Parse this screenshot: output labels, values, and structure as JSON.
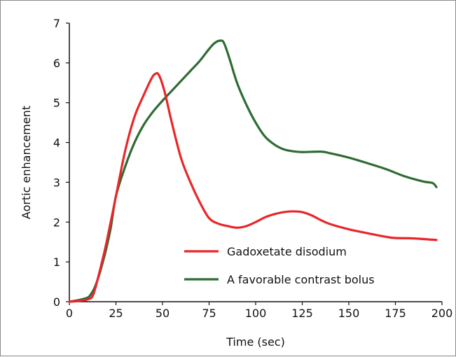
{
  "chart_data": {
    "type": "line",
    "xlabel": "Time (sec)",
    "ylabel": "Aortic enhancement",
    "xlim": [
      0,
      200
    ],
    "ylim": [
      0,
      7
    ],
    "x_ticks": [
      0,
      25,
      50,
      75,
      100,
      125,
      150,
      175,
      200
    ],
    "y_ticks": [
      0,
      1,
      2,
      3,
      4,
      5,
      6,
      7
    ],
    "grid": false,
    "legend_position": "lower-center",
    "series": [
      {
        "name": "Gadoxetate disodium",
        "color": "#e8262a",
        "points": [
          [
            0,
            0
          ],
          [
            5,
            0.02
          ],
          [
            10,
            0.06
          ],
          [
            13,
            0.2
          ],
          [
            17,
            0.9
          ],
          [
            20,
            1.5
          ],
          [
            25,
            2.65
          ],
          [
            30,
            3.8
          ],
          [
            35,
            4.65
          ],
          [
            40,
            5.2
          ],
          [
            44,
            5.6
          ],
          [
            46,
            5.72
          ],
          [
            48,
            5.7
          ],
          [
            51,
            5.3
          ],
          [
            55,
            4.5
          ],
          [
            60,
            3.6
          ],
          [
            65,
            3.0
          ],
          [
            70,
            2.5
          ],
          [
            75,
            2.1
          ],
          [
            80,
            1.96
          ],
          [
            85,
            1.9
          ],
          [
            90,
            1.86
          ],
          [
            95,
            1.9
          ],
          [
            100,
            2.0
          ],
          [
            105,
            2.12
          ],
          [
            110,
            2.2
          ],
          [
            115,
            2.25
          ],
          [
            120,
            2.27
          ],
          [
            125,
            2.25
          ],
          [
            130,
            2.17
          ],
          [
            135,
            2.05
          ],
          [
            140,
            1.95
          ],
          [
            150,
            1.82
          ],
          [
            160,
            1.72
          ],
          [
            170,
            1.63
          ],
          [
            175,
            1.6
          ],
          [
            185,
            1.59
          ],
          [
            197,
            1.55
          ]
        ]
      },
      {
        "name": "A favorable contrast bolus",
        "color": "#2e6b33",
        "points": [
          [
            0,
            0
          ],
          [
            5,
            0.04
          ],
          [
            9,
            0.09
          ],
          [
            11,
            0.15
          ],
          [
            14,
            0.4
          ],
          [
            18,
            1.0
          ],
          [
            22,
            1.8
          ],
          [
            25,
            2.65
          ],
          [
            30,
            3.4
          ],
          [
            35,
            4.0
          ],
          [
            40,
            4.45
          ],
          [
            45,
            4.78
          ],
          [
            50,
            5.05
          ],
          [
            55,
            5.3
          ],
          [
            60,
            5.55
          ],
          [
            65,
            5.8
          ],
          [
            70,
            6.05
          ],
          [
            75,
            6.35
          ],
          [
            78,
            6.5
          ],
          [
            81,
            6.56
          ],
          [
            83,
            6.5
          ],
          [
            86,
            6.1
          ],
          [
            90,
            5.5
          ],
          [
            95,
            4.95
          ],
          [
            100,
            4.5
          ],
          [
            105,
            4.15
          ],
          [
            110,
            3.95
          ],
          [
            115,
            3.83
          ],
          [
            120,
            3.78
          ],
          [
            125,
            3.76
          ],
          [
            135,
            3.77
          ],
          [
            140,
            3.73
          ],
          [
            150,
            3.62
          ],
          [
            160,
            3.48
          ],
          [
            170,
            3.33
          ],
          [
            180,
            3.15
          ],
          [
            190,
            3.02
          ],
          [
            195,
            2.98
          ],
          [
            197,
            2.88
          ]
        ]
      }
    ]
  }
}
